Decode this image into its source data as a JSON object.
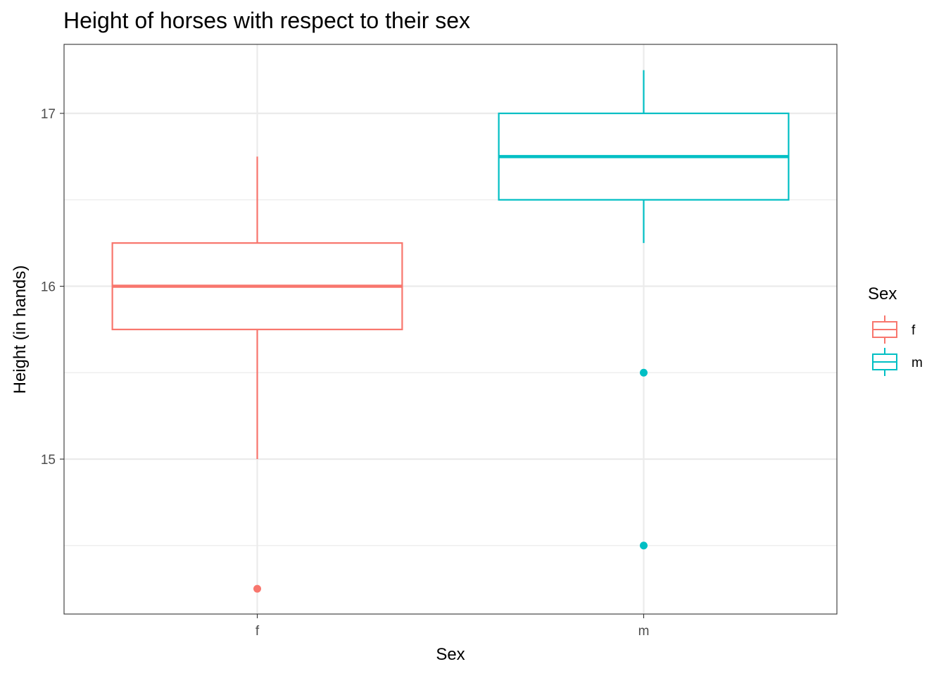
{
  "chart_data": {
    "type": "boxplot",
    "title": "Height of horses with respect to their sex",
    "xlabel": "Sex",
    "ylabel": "Height (in hands)",
    "categories": [
      "f",
      "m"
    ],
    "ylim": [
      14.15,
      17.4
    ],
    "y_ticks": [
      15,
      16,
      17
    ],
    "grid": true,
    "legend": {
      "title": "Sex",
      "position": "right"
    },
    "series": [
      {
        "name": "f",
        "color": "#F8766D",
        "whisker_low": 15.0,
        "q1": 15.75,
        "median": 16.0,
        "q3": 16.25,
        "whisker_high": 16.75,
        "outliers": [
          14.25
        ]
      },
      {
        "name": "m",
        "color": "#00BFC4",
        "whisker_low": 16.25,
        "q1": 16.5,
        "median": 16.75,
        "q3": 17.0,
        "whisker_high": 17.25,
        "outliers": [
          15.5,
          14.5
        ]
      }
    ]
  }
}
